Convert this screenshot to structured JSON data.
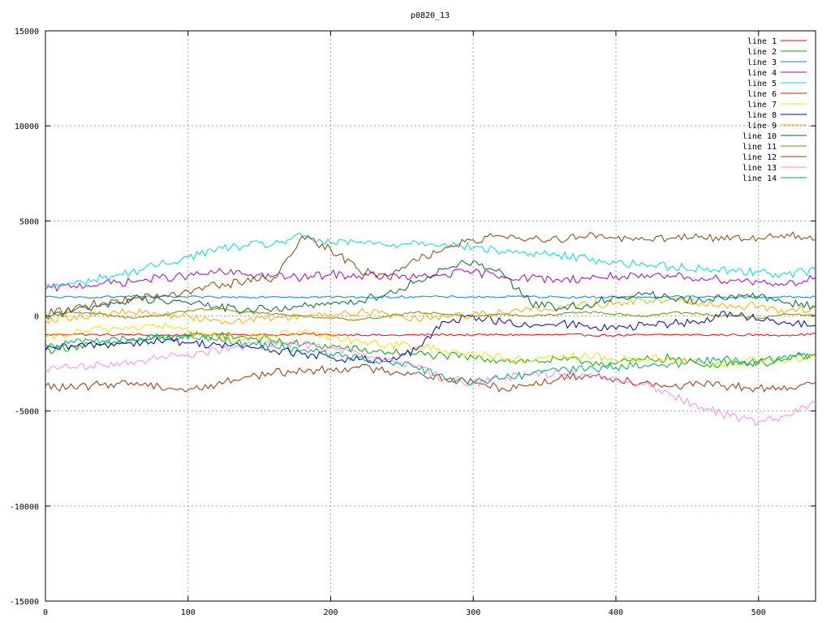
{
  "chart_data": {
    "type": "line",
    "title": "p0820_13",
    "xlabel": "",
    "ylabel": "",
    "xlim": [
      0,
      540
    ],
    "ylim": [
      -15000,
      15000
    ],
    "xticks": [
      0,
      100,
      200,
      300,
      400,
      500
    ],
    "yticks": [
      -15000,
      -10000,
      -5000,
      0,
      5000,
      10000,
      15000
    ],
    "grid": true,
    "legend_position": "top-right",
    "x": [
      0,
      20,
      40,
      60,
      80,
      100,
      120,
      140,
      160,
      180,
      200,
      220,
      240,
      260,
      280,
      300,
      320,
      340,
      360,
      380,
      400,
      420,
      440,
      460,
      480,
      500,
      520,
      540
    ],
    "series": [
      {
        "name": "line 1",
        "color": "#ff0000",
        "values": [
          -1000,
          -950,
          -1000,
          -980,
          -1020,
          -1000,
          -950,
          -980,
          -1000,
          -950,
          -1000,
          -980,
          -1020,
          -1000,
          -980,
          -1000,
          -980,
          -1000,
          -990,
          -1000,
          -1020,
          -1000,
          -980,
          -1000,
          -990,
          -1000,
          -1000,
          -950
        ]
      },
      {
        "name": "line 2",
        "color": "#00aa00",
        "values": [
          -1800,
          -1600,
          -1500,
          -1300,
          -1200,
          -1100,
          -1000,
          -1100,
          -1300,
          -1500,
          -1600,
          -1800,
          -1900,
          -2000,
          -2100,
          -2200,
          -2300,
          -2400,
          -2300,
          -2400,
          -2500,
          -2300,
          -2200,
          -2600,
          -2400,
          -2500,
          -2300,
          -2000
        ]
      },
      {
        "name": "line 3",
        "color": "#0088cc",
        "values": [
          1000,
          980,
          1000,
          1020,
          1000,
          1000,
          980,
          1000,
          1020,
          1000,
          1000,
          980,
          1000,
          1020,
          1000,
          1000,
          1000,
          1020,
          1000,
          990,
          1000,
          1000,
          1020,
          1000,
          990,
          1000,
          1000,
          1000
        ]
      },
      {
        "name": "line 4",
        "color": "#aa00cc",
        "values": [
          1400,
          1600,
          1700,
          1800,
          2000,
          2100,
          2300,
          2200,
          2100,
          2000,
          2200,
          2100,
          2100,
          2000,
          2200,
          2300,
          2100,
          2000,
          1900,
          2000,
          2100,
          2000,
          2100,
          2000,
          1900,
          1800,
          1700,
          2000
        ]
      },
      {
        "name": "line 5",
        "color": "#00dddd",
        "values": [
          1500,
          1700,
          2000,
          2300,
          2700,
          3100,
          3500,
          3700,
          3800,
          4200,
          3800,
          3900,
          3700,
          3900,
          3800,
          3600,
          3400,
          3300,
          3200,
          3000,
          2800,
          2700,
          2600,
          2500,
          2400,
          2300,
          2200,
          2400
        ]
      },
      {
        "name": "line 6",
        "color": "#993300",
        "values": [
          -3700,
          -3800,
          -3600,
          -3500,
          -3700,
          -3900,
          -3600,
          -3200,
          -3000,
          -2900,
          -2800,
          -2700,
          -2900,
          -3000,
          -3300,
          -3500,
          -3800,
          -3600,
          -3300,
          -3100,
          -3300,
          -3500,
          -3700,
          -3600,
          -3700,
          -3800,
          -3900,
          -3500
        ]
      },
      {
        "name": "line 7",
        "color": "#ffdd00",
        "values": [
          -1200,
          -900,
          -700,
          -600,
          -500,
          -800,
          -1100,
          -1200,
          -1000,
          -900,
          -1100,
          -1300,
          -1500,
          -1600,
          -1800,
          -2000,
          -2200,
          -2400,
          -2200,
          -2100,
          -2300,
          -2200,
          -2300,
          -2400,
          -2500,
          -2300,
          -2400,
          -2200
        ]
      },
      {
        "name": "line 8",
        "color": "#0000aa",
        "values": [
          -1800,
          -1600,
          -1500,
          -1400,
          -1300,
          -1400,
          -1500,
          -1600,
          -1800,
          -2000,
          -2200,
          -2300,
          -2400,
          -1800,
          -300,
          0,
          -300,
          -600,
          -400,
          -500,
          -700,
          -500,
          -400,
          -300,
          200,
          -200,
          -400,
          -500
        ]
      },
      {
        "name": "line 9",
        "color": "#ffaa00",
        "values": [
          -200,
          0,
          100,
          200,
          100,
          0,
          -200,
          -300,
          -100,
          0,
          100,
          200,
          100,
          -100,
          0,
          100,
          200,
          300,
          500,
          600,
          700,
          800,
          900,
          700,
          600,
          500,
          300,
          400
        ]
      },
      {
        "name": "line 10",
        "color": "#006633",
        "values": [
          0,
          300,
          600,
          800,
          900,
          700,
          500,
          300,
          400,
          500,
          600,
          800,
          1200,
          1800,
          2500,
          2900,
          2300,
          700,
          400,
          600,
          1000,
          1200,
          900,
          800,
          1100,
          1000,
          700,
          500
        ]
      },
      {
        "name": "line 11",
        "color": "#778800",
        "values": [
          0,
          200,
          100,
          -100,
          0,
          300,
          400,
          200,
          100,
          0,
          -100,
          -200,
          0,
          200,
          100,
          0,
          100,
          0,
          100,
          200,
          100,
          0,
          200,
          100,
          0,
          -100,
          100,
          0
        ]
      },
      {
        "name": "line 12",
        "color": "#884400",
        "values": [
          100,
          400,
          700,
          900,
          1000,
          1300,
          1600,
          1800,
          2000,
          4200,
          3500,
          2400,
          2000,
          2900,
          3600,
          4000,
          4200,
          4100,
          4000,
          4200,
          4100,
          4000,
          4100,
          4200,
          4000,
          4100,
          4300,
          4000
        ]
      },
      {
        "name": "line 13",
        "color": "#ff88ee",
        "values": [
          -2800,
          -2700,
          -2600,
          -2400,
          -2200,
          -2000,
          -1800,
          -1600,
          -1400,
          -1500,
          -1700,
          -2000,
          -2300,
          -2700,
          -3300,
          -3500,
          -3300,
          -3100,
          -3000,
          -3200,
          -3400,
          -3600,
          -4200,
          -4800,
          -5300,
          -5600,
          -5200,
          -4600
        ]
      },
      {
        "name": "line 14",
        "color": "#00aa66",
        "values": [
          -1500,
          -1400,
          -1300,
          -1200,
          -1100,
          -1200,
          -1300,
          -1400,
          -1600,
          -1800,
          -2000,
          -2200,
          -2400,
          -2700,
          -3300,
          -3500,
          -3300,
          -3100,
          -2900,
          -2800,
          -2700,
          -2600,
          -2500,
          -2400,
          -2300,
          -2400,
          -2200,
          -2000
        ]
      }
    ]
  }
}
